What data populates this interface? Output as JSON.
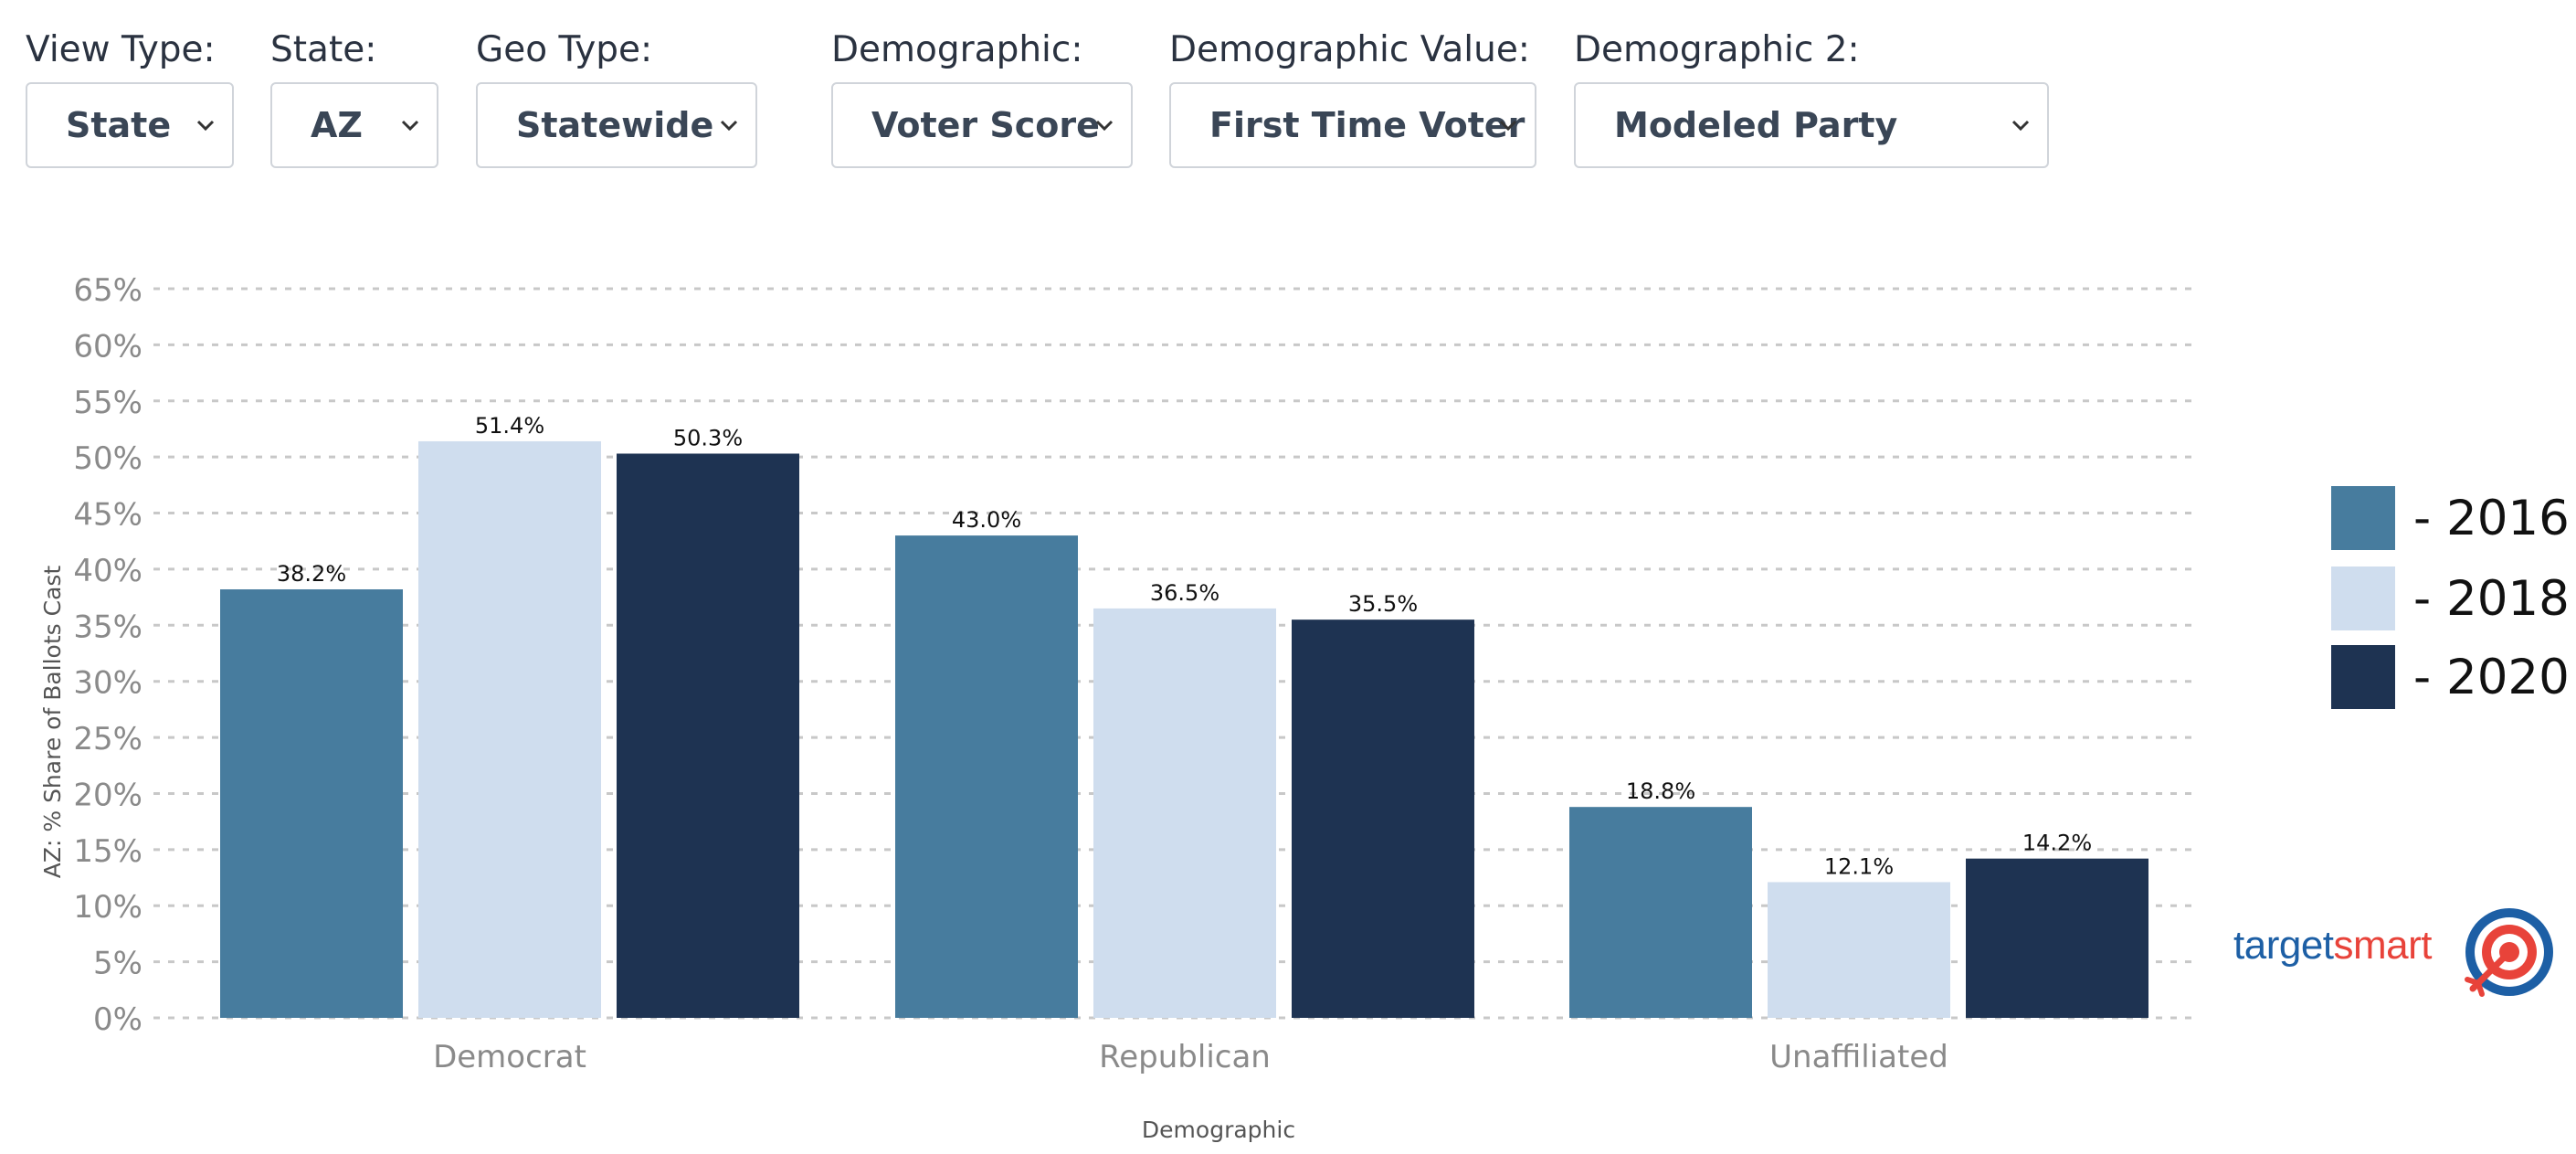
{
  "filters": [
    {
      "label": "View Type:",
      "value": "State"
    },
    {
      "label": "State:",
      "value": "AZ"
    },
    {
      "label": "Geo Type:",
      "value": "Statewide"
    },
    {
      "label": "Demographic:",
      "value": "Voter Score"
    },
    {
      "label": "Demographic Value:",
      "value": "First Time Voter"
    },
    {
      "label": "Demographic 2:",
      "value": "Modeled Party"
    }
  ],
  "colors": {
    "2016": "#477c9e",
    "2018": "#cfddee",
    "2020": "#1e3352",
    "grid": "#c8c8c8",
    "tick_text": "#8a8a8a",
    "logo_blue": "#1d5fa5",
    "logo_red": "#e8433a"
  },
  "legend": [
    "- 2016",
    "- 2018",
    "- 2020"
  ],
  "logo": {
    "part1": "target",
    "part2": "smart"
  },
  "chart_data": {
    "type": "bar",
    "title": "",
    "xlabel": "Demographic",
    "ylabel": "AZ: % Share of Ballots Cast",
    "categories": [
      "Democrat",
      "Republican",
      "Unaffiliated"
    ],
    "ylim": [
      0,
      65
    ],
    "y_ticks": [
      0,
      5,
      10,
      15,
      20,
      25,
      30,
      35,
      40,
      45,
      50,
      55,
      60,
      65
    ],
    "y_tick_suffix": "%",
    "grid": true,
    "grid_style": "dashed",
    "legend_position": "right",
    "series": [
      {
        "name": "2016",
        "values": [
          38.2,
          43.0,
          18.8
        ],
        "labels": [
          "38.2%",
          "43.0%",
          "18.8%"
        ]
      },
      {
        "name": "2018",
        "values": [
          51.4,
          36.5,
          12.1
        ],
        "labels": [
          "51.4%",
          "36.5%",
          "12.1%"
        ]
      },
      {
        "name": "2020",
        "values": [
          50.3,
          35.5,
          14.2
        ],
        "labels": [
          "50.3%",
          "35.5%",
          "14.2%"
        ]
      }
    ]
  }
}
